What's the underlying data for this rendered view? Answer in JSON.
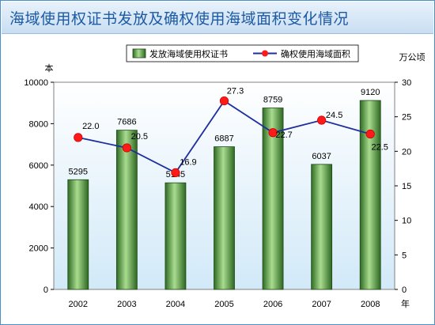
{
  "header": {
    "title": "海域使用权证书发放及确权使用海域面积变化情况"
  },
  "chart_data": {
    "type": "bar",
    "title": "海域使用权证书发放及确权使用海域面积变化情况",
    "categories": [
      "2002",
      "2003",
      "2004",
      "2005",
      "2006",
      "2007",
      "2008"
    ],
    "xlabel": "年",
    "ylabel_left": "本",
    "ylabel_right": "万公顷",
    "ylim_left": [
      0,
      10000
    ],
    "ylim_right": [
      0,
      30
    ],
    "yticks_left": [
      "0",
      "2000",
      "4000",
      "6000",
      "8000",
      "10000"
    ],
    "yticks_right": [
      "0",
      "5",
      "10",
      "15",
      "20",
      "25",
      "30"
    ],
    "legend_position": "top",
    "grid": false,
    "series": [
      {
        "name": "发放海域使用权证书",
        "kind": "bar",
        "axis": "left",
        "color": "#4f9a3f",
        "values": [
          5295,
          7686,
          5145,
          6887,
          8759,
          6037,
          9120
        ],
        "labels": [
          "5295",
          "7686",
          "5145",
          "6887",
          "8759",
          "6037",
          "9120"
        ]
      },
      {
        "name": "确权使用海域面积",
        "kind": "line",
        "axis": "right",
        "color": "#1f2f9e",
        "marker_color": "#ff1a1a",
        "values": [
          22.0,
          20.5,
          16.9,
          27.3,
          22.7,
          24.5,
          22.5
        ],
        "labels": [
          "22.0",
          "20.5",
          "16.9",
          "27.3",
          "22.7",
          "24.5",
          "22.5"
        ]
      }
    ]
  }
}
